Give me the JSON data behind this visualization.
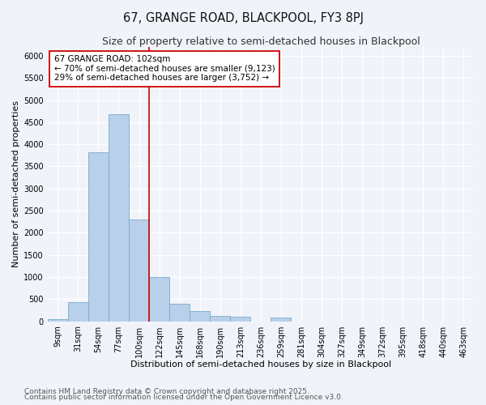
{
  "title_line1": "67, GRANGE ROAD, BLACKPOOL, FY3 8PJ",
  "title_line2": "Size of property relative to semi-detached houses in Blackpool",
  "xlabel": "Distribution of semi-detached houses by size in Blackpool",
  "ylabel": "Number of semi-detached properties",
  "categories": [
    "9sqm",
    "31sqm",
    "54sqm",
    "77sqm",
    "100sqm",
    "122sqm",
    "145sqm",
    "168sqm",
    "190sqm",
    "213sqm",
    "236sqm",
    "259sqm",
    "281sqm",
    "304sqm",
    "327sqm",
    "349sqm",
    "372sqm",
    "395sqm",
    "418sqm",
    "440sqm",
    "463sqm"
  ],
  "values": [
    50,
    430,
    3820,
    4680,
    2300,
    1000,
    400,
    230,
    120,
    100,
    0,
    90,
    0,
    0,
    0,
    0,
    0,
    0,
    0,
    0,
    0
  ],
  "bar_color": "#b8d0ea",
  "bar_edge_color": "#7aaad0",
  "vline_x_index": 4,
  "vline_color": "#cc0000",
  "annotation_title": "67 GRANGE ROAD: 102sqm",
  "annotation_line1": "← 70% of semi-detached houses are smaller (9,123)",
  "annotation_line2": "29% of semi-detached houses are larger (3,752) →",
  "annotation_box_color": "#ffffff",
  "annotation_box_edge": "#cc0000",
  "ylim": [
    0,
    6200
  ],
  "yticks": [
    0,
    500,
    1000,
    1500,
    2000,
    2500,
    3000,
    3500,
    4000,
    4500,
    5000,
    5500,
    6000
  ],
  "fig_background": "#f0f4fa",
  "plot_background": "#f0f4fa",
  "grid_color": "#ffffff",
  "footnote_line1": "Contains HM Land Registry data © Crown copyright and database right 2025.",
  "footnote_line2": "Contains public sector information licensed under the Open Government Licence v3.0.",
  "title_fontsize": 10.5,
  "subtitle_fontsize": 9,
  "axis_label_fontsize": 8,
  "tick_fontsize": 7,
  "annotation_fontsize": 7.5,
  "footnote_fontsize": 6.5
}
